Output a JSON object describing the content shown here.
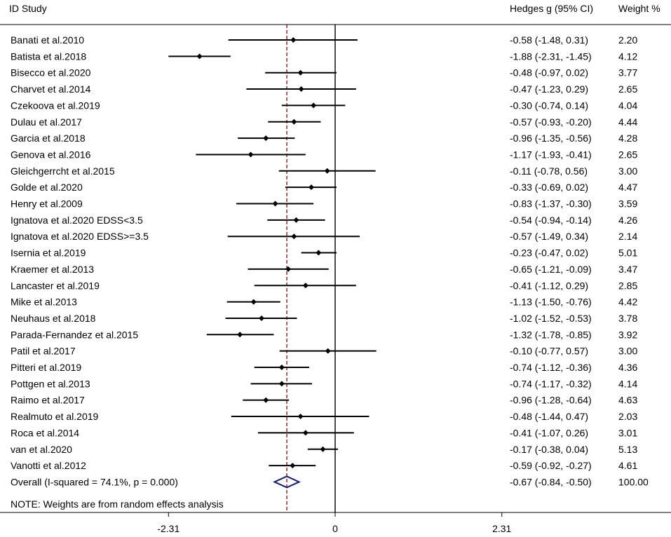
{
  "chart_data": {
    "type": "forest",
    "headers": {
      "study": "ID Study",
      "effect": "Hedges g (95% CI)",
      "weight": "Weight %"
    },
    "xaxis": {
      "ticks": [
        -2.31,
        0,
        2.31
      ],
      "tick_labels": [
        "-2.31",
        "0",
        "2.31"
      ],
      "range": [
        -4.6,
        4.6
      ]
    },
    "null_line": 0,
    "studies": [
      {
        "label": "Banati et al.2010",
        "g": -0.58,
        "lo": -1.48,
        "hi": 0.31,
        "ci_text": "-0.58 (-1.48, 0.31)",
        "weight": "2.20"
      },
      {
        "label": "Batista et al.2018",
        "g": -1.88,
        "lo": -2.31,
        "hi": -1.45,
        "ci_text": "-1.88 (-2.31, -1.45)",
        "weight": "4.12"
      },
      {
        "label": "Bisecco et al.2020",
        "g": -0.48,
        "lo": -0.97,
        "hi": 0.02,
        "ci_text": "-0.48 (-0.97, 0.02)",
        "weight": "3.77"
      },
      {
        "label": "Charvet et al.2014",
        "g": -0.47,
        "lo": -1.23,
        "hi": 0.29,
        "ci_text": "-0.47 (-1.23, 0.29)",
        "weight": "2.65"
      },
      {
        "label": "Czekoova et al.2019",
        "g": -0.3,
        "lo": -0.74,
        "hi": 0.14,
        "ci_text": "-0.30 (-0.74, 0.14)",
        "weight": "4.04"
      },
      {
        "label": "Dulau et al.2017",
        "g": -0.57,
        "lo": -0.93,
        "hi": -0.2,
        "ci_text": "-0.57 (-0.93, -0.20)",
        "weight": "4.44"
      },
      {
        "label": "Garcia et al.2018",
        "g": -0.96,
        "lo": -1.35,
        "hi": -0.56,
        "ci_text": "-0.96 (-1.35, -0.56)",
        "weight": "4.28"
      },
      {
        "label": "Genova et al.2016",
        "g": -1.17,
        "lo": -1.93,
        "hi": -0.41,
        "ci_text": "-1.17 (-1.93, -0.41)",
        "weight": "2.65"
      },
      {
        "label": "Gleichgerrcht et al.2015",
        "g": -0.11,
        "lo": -0.78,
        "hi": 0.56,
        "ci_text": "-0.11 (-0.78, 0.56)",
        "weight": "3.00"
      },
      {
        "label": "Golde et al.2020",
        "g": -0.33,
        "lo": -0.69,
        "hi": 0.02,
        "ci_text": "-0.33 (-0.69, 0.02)",
        "weight": "4.47"
      },
      {
        "label": "Henry et al.2009",
        "g": -0.83,
        "lo": -1.37,
        "hi": -0.3,
        "ci_text": "-0.83 (-1.37, -0.30)",
        "weight": "3.59"
      },
      {
        "label": "Ignatova et al.2020 EDSS<3.5",
        "g": -0.54,
        "lo": -0.94,
        "hi": -0.14,
        "ci_text": "-0.54 (-0.94, -0.14)",
        "weight": "4.26"
      },
      {
        "label": "Ignatova et al.2020 EDSS>=3.5",
        "g": -0.57,
        "lo": -1.49,
        "hi": 0.34,
        "ci_text": "-0.57 (-1.49, 0.34)",
        "weight": "2.14"
      },
      {
        "label": "Isernia et al.2019",
        "g": -0.23,
        "lo": -0.47,
        "hi": 0.02,
        "ci_text": "-0.23 (-0.47, 0.02)",
        "weight": "5.01"
      },
      {
        "label": "Kraemer et al.2013",
        "g": -0.65,
        "lo": -1.21,
        "hi": -0.09,
        "ci_text": "-0.65 (-1.21, -0.09)",
        "weight": "3.47"
      },
      {
        "label": "Lancaster et al.2019",
        "g": -0.41,
        "lo": -1.12,
        "hi": 0.29,
        "ci_text": "-0.41 (-1.12, 0.29)",
        "weight": "2.85"
      },
      {
        "label": "Mike et al.2013",
        "g": -1.13,
        "lo": -1.5,
        "hi": -0.76,
        "ci_text": "-1.13 (-1.50, -0.76)",
        "weight": "4.42"
      },
      {
        "label": "Neuhaus et al.2018",
        "g": -1.02,
        "lo": -1.52,
        "hi": -0.53,
        "ci_text": "-1.02 (-1.52, -0.53)",
        "weight": "3.78"
      },
      {
        "label": "Parada-Fernandez et al.2015",
        "g": -1.32,
        "lo": -1.78,
        "hi": -0.85,
        "ci_text": "-1.32 (-1.78, -0.85)",
        "weight": "3.92"
      },
      {
        "label": "Patil et al.2017",
        "g": -0.1,
        "lo": -0.77,
        "hi": 0.57,
        "ci_text": "-0.10 (-0.77, 0.57)",
        "weight": "3.00"
      },
      {
        "label": "Pitteri et al.2019",
        "g": -0.74,
        "lo": -1.12,
        "hi": -0.36,
        "ci_text": "-0.74 (-1.12, -0.36)",
        "weight": "4.36"
      },
      {
        "label": "Pottgen et al.2013",
        "g": -0.74,
        "lo": -1.17,
        "hi": -0.32,
        "ci_text": "-0.74 (-1.17, -0.32)",
        "weight": "4.14"
      },
      {
        "label": "Raimo et al.2017",
        "g": -0.96,
        "lo": -1.28,
        "hi": -0.64,
        "ci_text": "-0.96 (-1.28, -0.64)",
        "weight": "4.63"
      },
      {
        "label": "Realmuto et al.2019",
        "g": -0.48,
        "lo": -1.44,
        "hi": 0.47,
        "ci_text": "-0.48 (-1.44, 0.47)",
        "weight": "2.03"
      },
      {
        "label": "Roca et al.2014",
        "g": -0.41,
        "lo": -1.07,
        "hi": 0.26,
        "ci_text": "-0.41 (-1.07, 0.26)",
        "weight": "3.01"
      },
      {
        "label": "van et al.2020",
        "g": -0.17,
        "lo": -0.38,
        "hi": 0.04,
        "ci_text": "-0.17 (-0.38, 0.04)",
        "weight": "5.13"
      },
      {
        "label": "Vanotti et al.2012",
        "g": -0.59,
        "lo": -0.92,
        "hi": -0.27,
        "ci_text": "-0.59 (-0.92, -0.27)",
        "weight": "4.61"
      }
    ],
    "overall": {
      "label": "Overall  (I-squared = 74.1%, p = 0.000)",
      "g": -0.67,
      "lo": -0.84,
      "hi": -0.5,
      "ci_text": "-0.67 (-0.84, -0.50)",
      "weight": "100.00"
    },
    "note": "NOTE: Weights are from random effects analysis",
    "colors": {
      "marker": "#000000",
      "overall_diamond": "#1a1a6e",
      "overall_line": "#8b1a1a"
    }
  }
}
